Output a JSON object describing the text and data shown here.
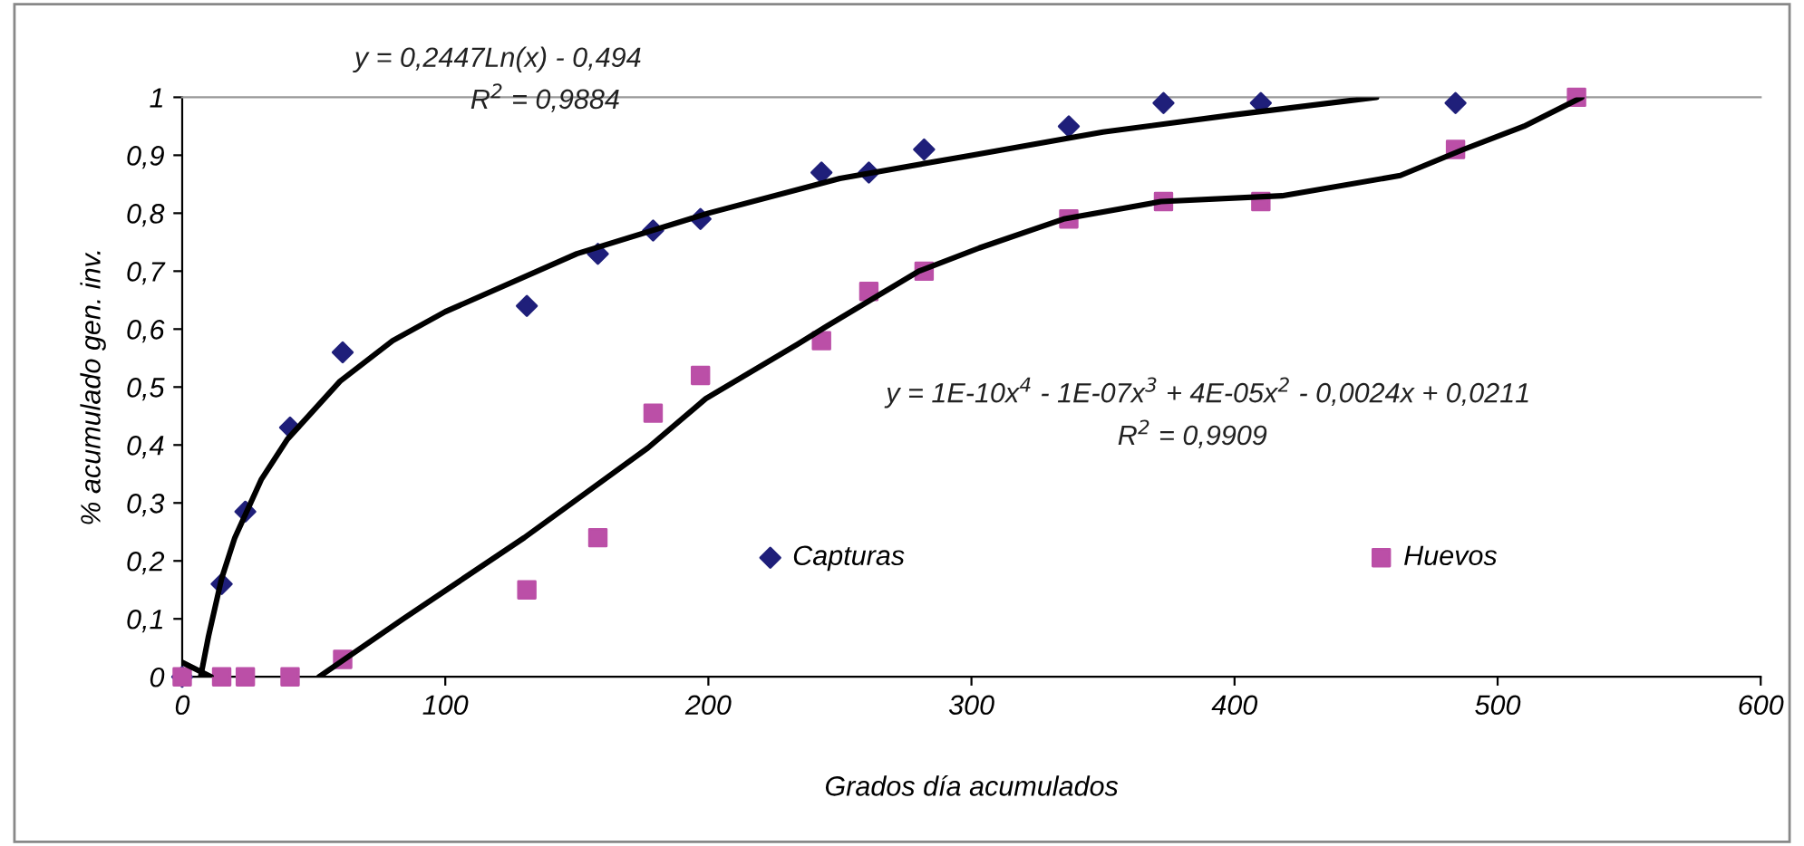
{
  "chart_data": {
    "type": "scatter",
    "xlabel": "Grados día acumulados",
    "ylabel": "% acumulado gen. inv.",
    "xlim": [
      0,
      600
    ],
    "xticks": [
      0,
      100,
      200,
      300,
      400,
      500,
      600
    ],
    "ylim": [
      0,
      1
    ],
    "yticks": [
      0,
      {
        "value": 0.1,
        "label": "0,1"
      },
      {
        "value": 0.2,
        "label": "0,2"
      },
      {
        "value": 0.3,
        "label": "0,3"
      },
      {
        "value": 0.4,
        "label": "0,4"
      },
      {
        "value": 0.5,
        "label": "0,5"
      },
      {
        "value": 0.6,
        "label": "0,6"
      },
      {
        "value": 0.7,
        "label": "0,7"
      },
      {
        "value": 0.8,
        "label": "0,8"
      },
      {
        "value": 0.9,
        "label": "0,9"
      },
      1
    ],
    "grid": false,
    "legend": "bottom",
    "annotations": [
      "y = 0,2447Ln(x) - 0,494",
      "R$^{2}$ = 0,9884",
      "y = 1E-10x$^{4}$ - 1E-07x$^{3}$ + 4E-05x$^{2}$ - 0,0024x + 0,0211",
      "R$^{2}$ = 0,9909"
    ],
    "series": [
      {
        "name": "Capturas",
        "marker": "diamond",
        "color": "#1f1f7a",
        "x": [
          0,
          15,
          24,
          41,
          61,
          131,
          158,
          179,
          197,
          243,
          261,
          282,
          337,
          373,
          410,
          484
        ],
        "values": [
          0,
          0.16,
          0.285,
          0.43,
          0.56,
          0.64,
          0.73,
          0.77,
          0.79,
          0.87,
          0.87,
          0.91,
          0.95,
          0.99,
          0.99,
          0.99
        ]
      },
      {
        "name": "Huevos",
        "marker": "square",
        "color": "#bb4fa7",
        "x": [
          0,
          15,
          24,
          41,
          61,
          131,
          158,
          179,
          197,
          243,
          261,
          282,
          337,
          373,
          410,
          484,
          530
        ],
        "values": [
          0,
          0,
          0,
          0,
          0.03,
          0.15,
          0.24,
          0.455,
          0.52,
          0.58,
          0.665,
          0.7,
          0.79,
          0.82,
          0.82,
          0.91,
          1.0
        ]
      },
      {
        "type": "line",
        "color": "#000000",
        "x": [
          7,
          10,
          15,
          20,
          30,
          40,
          60,
          80,
          100,
          150,
          200,
          250,
          300,
          350,
          400,
          454
        ],
        "values": [
          0,
          0.07,
          0.17,
          0.24,
          0.34,
          0.41,
          0.51,
          0.58,
          0.63,
          0.73,
          0.8,
          0.86,
          0.9,
          0.94,
          0.97,
          1.0
        ]
      },
      {
        "type": "line",
        "color": "#000000",
        "x": [
          0,
          11,
          30,
          52,
          84,
          130,
          177,
          199,
          234,
          245,
          280,
          303,
          335,
          372,
          418,
          463,
          487,
          510,
          532
        ],
        "values": [
          0.025,
          0,
          null,
          0,
          0.1,
          0.24,
          0.395,
          0.48,
          0.574,
          0.605,
          0.7,
          0.74,
          0.79,
          0.82,
          0.83,
          0.865,
          0.91,
          0.95,
          1.0
        ]
      }
    ]
  }
}
